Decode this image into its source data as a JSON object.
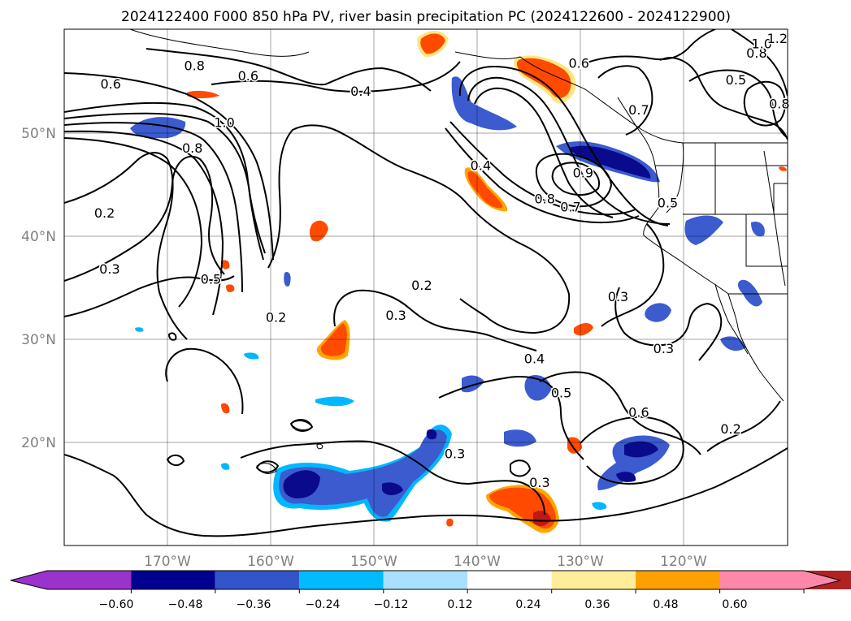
{
  "title": "2024122400 F000 850 hPa PV, river basin precipitation PC (2024122600 - 2024122900)",
  "map": {
    "lon_ticks": [
      "170°W",
      "160°W",
      "150°W",
      "140°W",
      "130°W",
      "120°W"
    ],
    "lat_ticks": [
      "50°N",
      "40°N",
      "30°N",
      "20°N"
    ],
    "extent": {
      "lon": [
        -180,
        -110
      ],
      "lat": [
        10,
        60
      ]
    },
    "grid": true,
    "contour_field": "850 hPa PV",
    "contour_labels": [
      {
        "text": "0.8",
        "lon": -167.4,
        "lat": 56.4
      },
      {
        "text": "0.6",
        "lon": -162.2,
        "lat": 55.4
      },
      {
        "text": "0.6",
        "lon": -175.5,
        "lat": 54.6
      },
      {
        "text": "0.4",
        "lon": -151.3,
        "lat": 53.9
      },
      {
        "text": "1.0",
        "lon": -164.5,
        "lat": 50.9
      },
      {
        "text": "0.8",
        "lon": -167.6,
        "lat": 48.4
      },
      {
        "text": "0.2",
        "lon": -176.1,
        "lat": 42.1
      },
      {
        "text": "0.3",
        "lon": -175.6,
        "lat": 36.7
      },
      {
        "text": "0.5",
        "lon": -165.8,
        "lat": 35.7
      },
      {
        "text": "0.2",
        "lon": -145.4,
        "lat": 35.1
      },
      {
        "text": "0.3",
        "lon": -147.9,
        "lat": 32.2
      },
      {
        "text": "0.2",
        "lon": -159.5,
        "lat": 32.0
      },
      {
        "text": "0.6",
        "lon": -130.2,
        "lat": 56.6
      },
      {
        "text": "0.4",
        "lon": -139.7,
        "lat": 46.7
      },
      {
        "text": "0.8",
        "lon": -133.5,
        "lat": 43.5
      },
      {
        "text": "0.7",
        "lon": -131.0,
        "lat": 42.7
      },
      {
        "text": "0.9",
        "lon": -129.8,
        "lat": 46.0
      },
      {
        "text": "0.7",
        "lon": -124.4,
        "lat": 52.1
      },
      {
        "text": "0.5",
        "lon": -121.6,
        "lat": 43.1
      },
      {
        "text": "0.5",
        "lon": -115.0,
        "lat": 55.0
      },
      {
        "text": "0.8",
        "lon": -113.0,
        "lat": 57.6
      },
      {
        "text": "1.0",
        "lon": -112.5,
        "lat": 58.5
      },
      {
        "text": "1.2",
        "lon": -111.0,
        "lat": 59.0
      },
      {
        "text": "0.8",
        "lon": -110.8,
        "lat": 52.7
      },
      {
        "text": "0.3",
        "lon": -126.4,
        "lat": 34.0
      },
      {
        "text": "0.3",
        "lon": -122.0,
        "lat": 29.0
      },
      {
        "text": "0.4",
        "lon": -134.5,
        "lat": 28.0
      },
      {
        "text": "0.5",
        "lon": -131.9,
        "lat": 24.7
      },
      {
        "text": "0.6",
        "lon": -124.4,
        "lat": 22.8
      },
      {
        "text": "0.3",
        "lon": -142.2,
        "lat": 18.8
      },
      {
        "text": "0.3",
        "lon": -134.0,
        "lat": 16.0
      },
      {
        "text": "0.2",
        "lon": -115.5,
        "lat": 21.2
      }
    ]
  },
  "colorbar": {
    "ticks": [
      "−0.60",
      "−0.48",
      "−0.36",
      "−0.24",
      "−0.12",
      "0.12",
      "0.24",
      "0.36",
      "0.48",
      "0.60"
    ],
    "colors": [
      "#9933cc",
      "#000090",
      "#3355cc",
      "#00bbff",
      "#aae0ff",
      "#ffffff",
      "#ffee99",
      "#ffa000",
      "#ff4400",
      "#b22222",
      "#ff88aa"
    ],
    "extend": "both"
  },
  "colors": {
    "dark_blue": "#0a0a8c",
    "mid_blue": "#3b5bcf",
    "cyan": "#00b8ff",
    "light_blue": "#a8ddff",
    "orange_red": "#ff4a00",
    "orange": "#ffa500",
    "yellow": "#ffe680",
    "dark_red": "#c01818"
  }
}
